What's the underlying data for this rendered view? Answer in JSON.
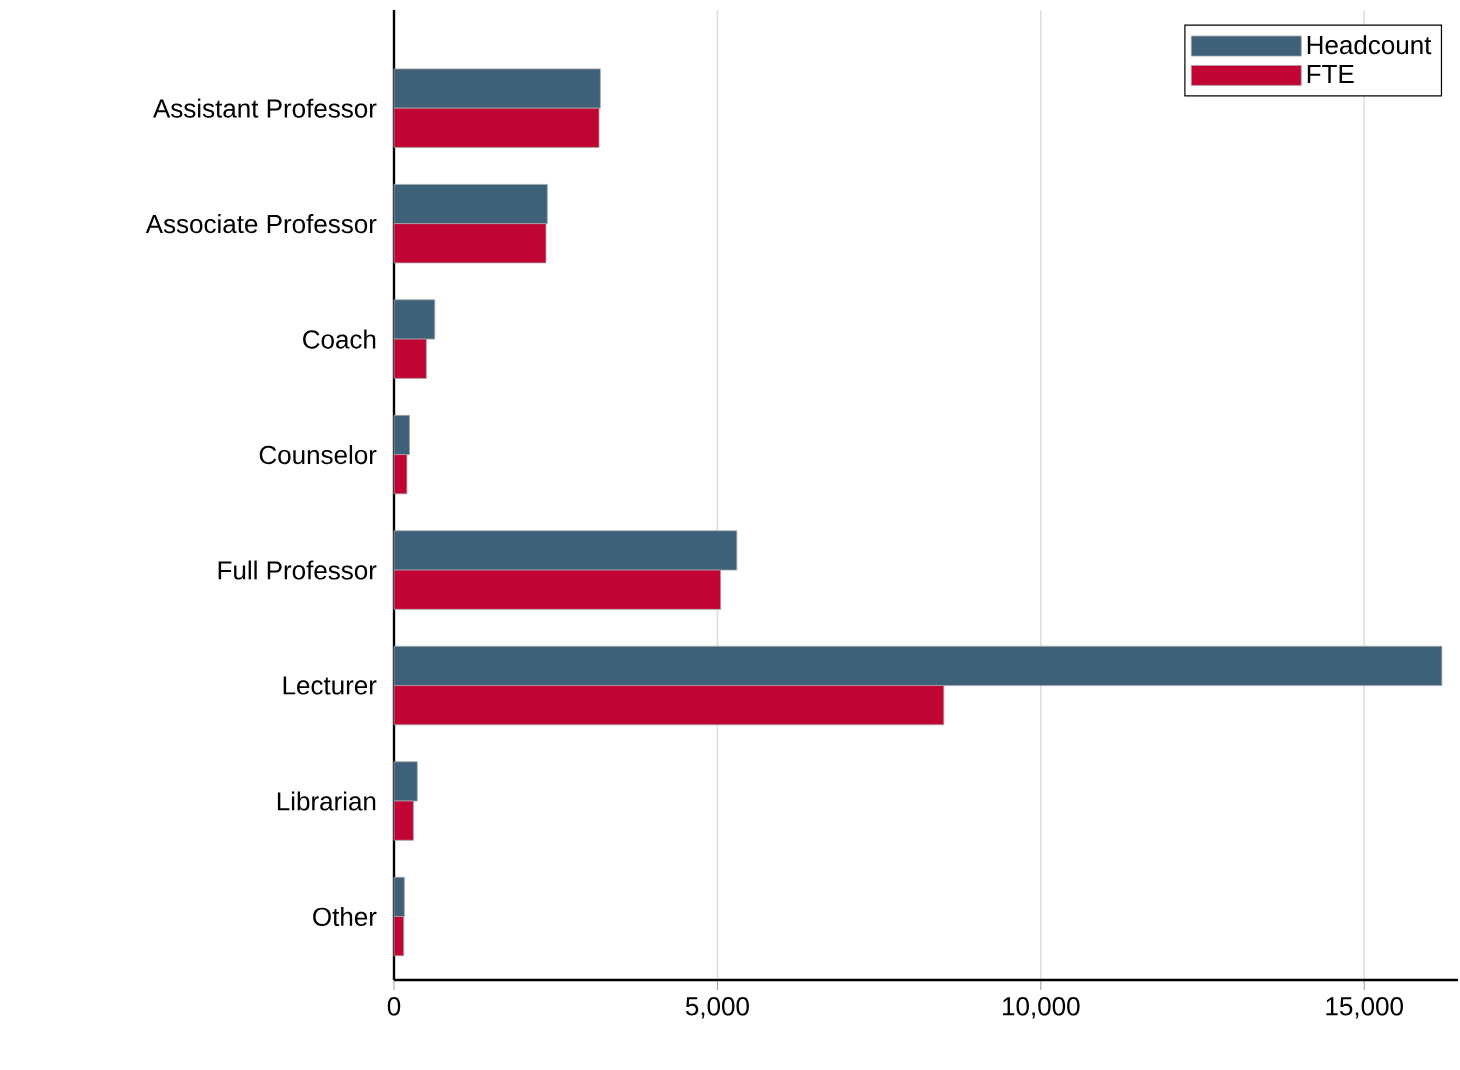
{
  "chart_data": {
    "type": "bar",
    "orientation": "horizontal",
    "categories": [
      "Assistant Professor",
      "Associate Professor",
      "Coach",
      "Counselor",
      "Full Professor",
      "Lecturer",
      "Librarian",
      "Other"
    ],
    "series": [
      {
        "name": "Headcount",
        "color": "#3e6079",
        "values": [
          3190,
          2370,
          630,
          240,
          5300,
          16200,
          360,
          160
        ]
      },
      {
        "name": "FTE",
        "color": "#c00535",
        "values": [
          3170,
          2350,
          500,
          200,
          5050,
          8500,
          300,
          150
        ]
      }
    ],
    "xlim": [
      0,
      16450
    ],
    "xticks": [
      0,
      {
        "value": 5000,
        "label": "5,000"
      },
      {
        "value": 10000,
        "label": "10,000"
      },
      {
        "value": 15000,
        "label": "15,000"
      }
    ],
    "grid": "x",
    "legend": "top right"
  }
}
